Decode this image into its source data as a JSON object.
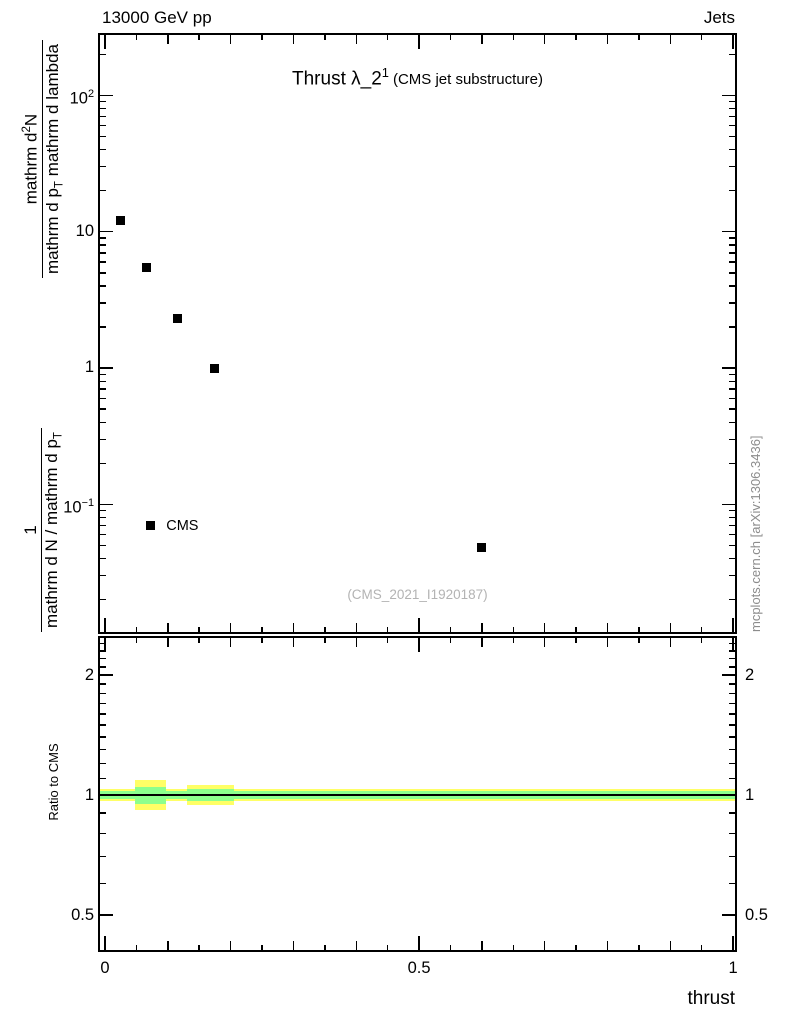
{
  "header": {
    "left": "13000 GeV pp",
    "right": "Jets"
  },
  "plot_title": {
    "main": "Thrust ",
    "symbol": "λ_2",
    "sup": "1",
    "suffix": "(CMS jet substructure)"
  },
  "watermark": "(CMS_2021_I1920187)",
  "side_label": "mcplots.cern.ch [arXiv:1306.3436]",
  "y_axis_label": {
    "frac1_num": "1",
    "frac1_den_base": "mathrm d N / mathrm d p",
    "frac1_den_sub": "T",
    "frac2_num_base": "mathrm d",
    "frac2_num_sup": "2",
    "frac2_num_rest": "N",
    "frac2_den_base": "mathrm d p",
    "frac2_den_sub": "T",
    "frac2_den_rest": " mathrm d lambda"
  },
  "ratio_label": "Ratio to CMS",
  "x_axis_label": "thrust",
  "chart_data": {
    "type": "scatter",
    "title": "Thrust λ_2^1 (CMS jet substructure)",
    "xlabel": "thrust",
    "xlim": [
      -0.008,
      1.003
    ],
    "x_ticks": [
      0,
      0.5,
      1
    ],
    "x_tick_labels": [
      "0",
      "0.5",
      "1"
    ],
    "grid": false,
    "main_panel": {
      "yscale": "log",
      "ylim": [
        0.0116,
        277
      ],
      "y_major_ticks": [
        100,
        10,
        1,
        0.1
      ],
      "y_tick_labels": [
        {
          "base": "10",
          "exp": "2"
        },
        {
          "base": "10",
          "exp": ""
        },
        {
          "base": "1",
          "exp": ""
        },
        {
          "base": "10",
          "exp": "−1"
        }
      ],
      "series": [
        {
          "name": "CMS",
          "marker": "square",
          "color": "#000000",
          "points": [
            [
              0.025,
              12
            ],
            [
              0.066,
              5.5
            ],
            [
              0.115,
              2.3
            ],
            [
              0.175,
              1.0
            ],
            [
              0.6,
              0.048
            ]
          ]
        }
      ],
      "legend": {
        "label": "CMS",
        "x": 0.072,
        "y": 0.07
      }
    },
    "ratio_panel": {
      "yscale": "log",
      "ylim": [
        0.408,
        2.48
      ],
      "y_major_ticks": [
        0.5,
        1,
        2
      ],
      "y_tick_labels": [
        "0.5",
        "1",
        "2"
      ],
      "line": {
        "y": 1,
        "color": "#000000"
      },
      "bands": [
        {
          "x0": -0.008,
          "x1": 1.003,
          "y0": 0.966,
          "y1": 1.035,
          "color": "#ffff66"
        },
        {
          "x0": -0.008,
          "x1": 1.003,
          "y0": 0.978,
          "y1": 1.022,
          "color": "#8dff8d"
        },
        {
          "x0": 0.048,
          "x1": 0.097,
          "y0": 0.915,
          "y1": 1.092,
          "color": "#ffff66"
        },
        {
          "x0": 0.048,
          "x1": 0.097,
          "y0": 0.952,
          "y1": 1.05,
          "color": "#8dff8d"
        },
        {
          "x0": 0.13,
          "x1": 0.205,
          "y0": 0.945,
          "y1": 1.058,
          "color": "#ffff66"
        },
        {
          "x0": 0.13,
          "x1": 0.205,
          "y0": 0.968,
          "y1": 1.033,
          "color": "#8dff8d"
        }
      ]
    },
    "colors": {
      "marker": "#000000",
      "band_outer": "#ffff66",
      "band_inner": "#8dff8d"
    }
  }
}
